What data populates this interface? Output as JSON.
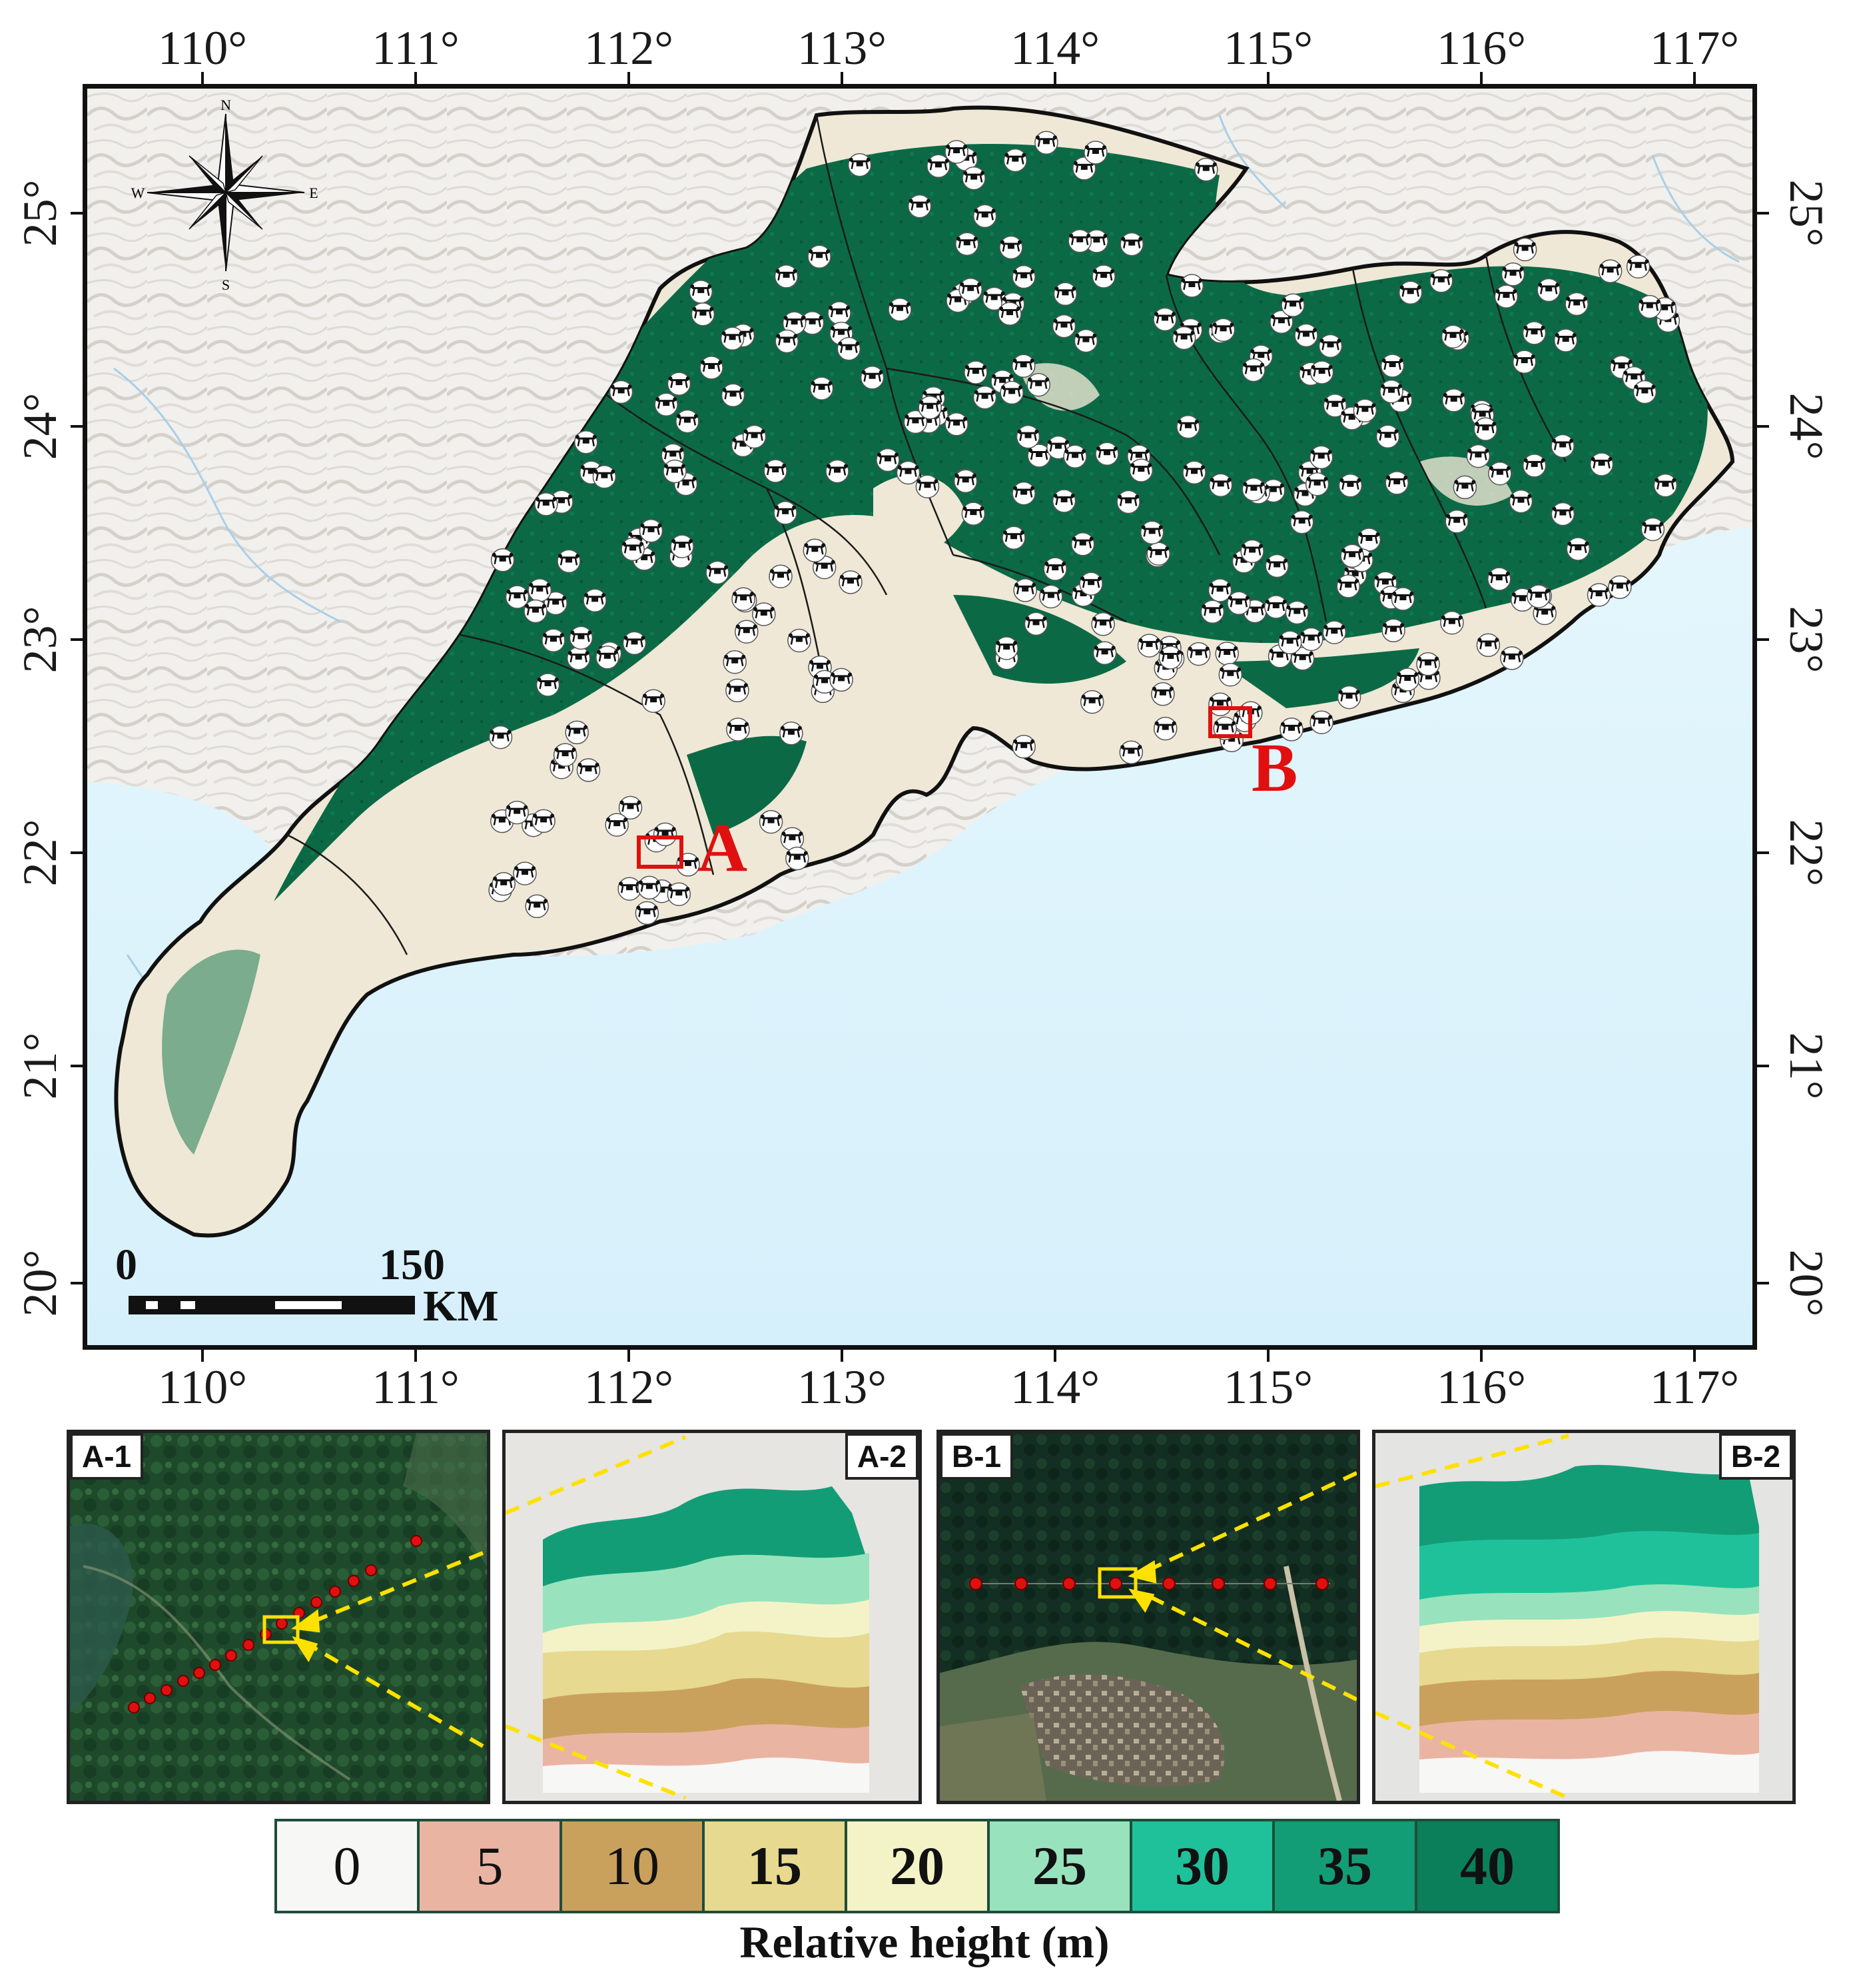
{
  "lon_labels": [
    "110°",
    "111°",
    "112°",
    "113°",
    "114°",
    "115°",
    "116°",
    "117°"
  ],
  "lat_labels": [
    "25°",
    "24°",
    "23°",
    "22°",
    "21°",
    "20°"
  ],
  "compass": {
    "n": "N",
    "s": "S",
    "e": "E",
    "w": "W"
  },
  "scale_bar": {
    "start": "0",
    "end": "150",
    "unit": "KM"
  },
  "site_markers": [
    {
      "label": "A"
    },
    {
      "label": "B"
    }
  ],
  "insets": [
    {
      "label": "A-1"
    },
    {
      "label": "A-2"
    },
    {
      "label": "B-1"
    },
    {
      "label": "B-2"
    }
  ],
  "legend": {
    "title": "Relative height (m)",
    "classes": [
      {
        "value": "0",
        "color": "#f7f7f6"
      },
      {
        "value": "5",
        "color": "#eab4a2"
      },
      {
        "value": "10",
        "color": "#caa15c"
      },
      {
        "value": "15",
        "color": "#e7d98f"
      },
      {
        "value": "20",
        "color": "#f3f3c7"
      },
      {
        "value": "25",
        "color": "#98e3bd"
      },
      {
        "value": "30",
        "color": "#1fc19b"
      },
      {
        "value": "35",
        "color": "#139d76"
      },
      {
        "value": "40",
        "color": "#0b7f59"
      }
    ]
  },
  "colors": {
    "forest": "#0b6a45",
    "land": "#efe8d6",
    "sea": "#dcf3fc",
    "marker": "#e01010",
    "highlight": "#ffe100"
  },
  "icons": {
    "drone_marker": "drone-icon",
    "north_arrow": "compass-rose-icon"
  }
}
